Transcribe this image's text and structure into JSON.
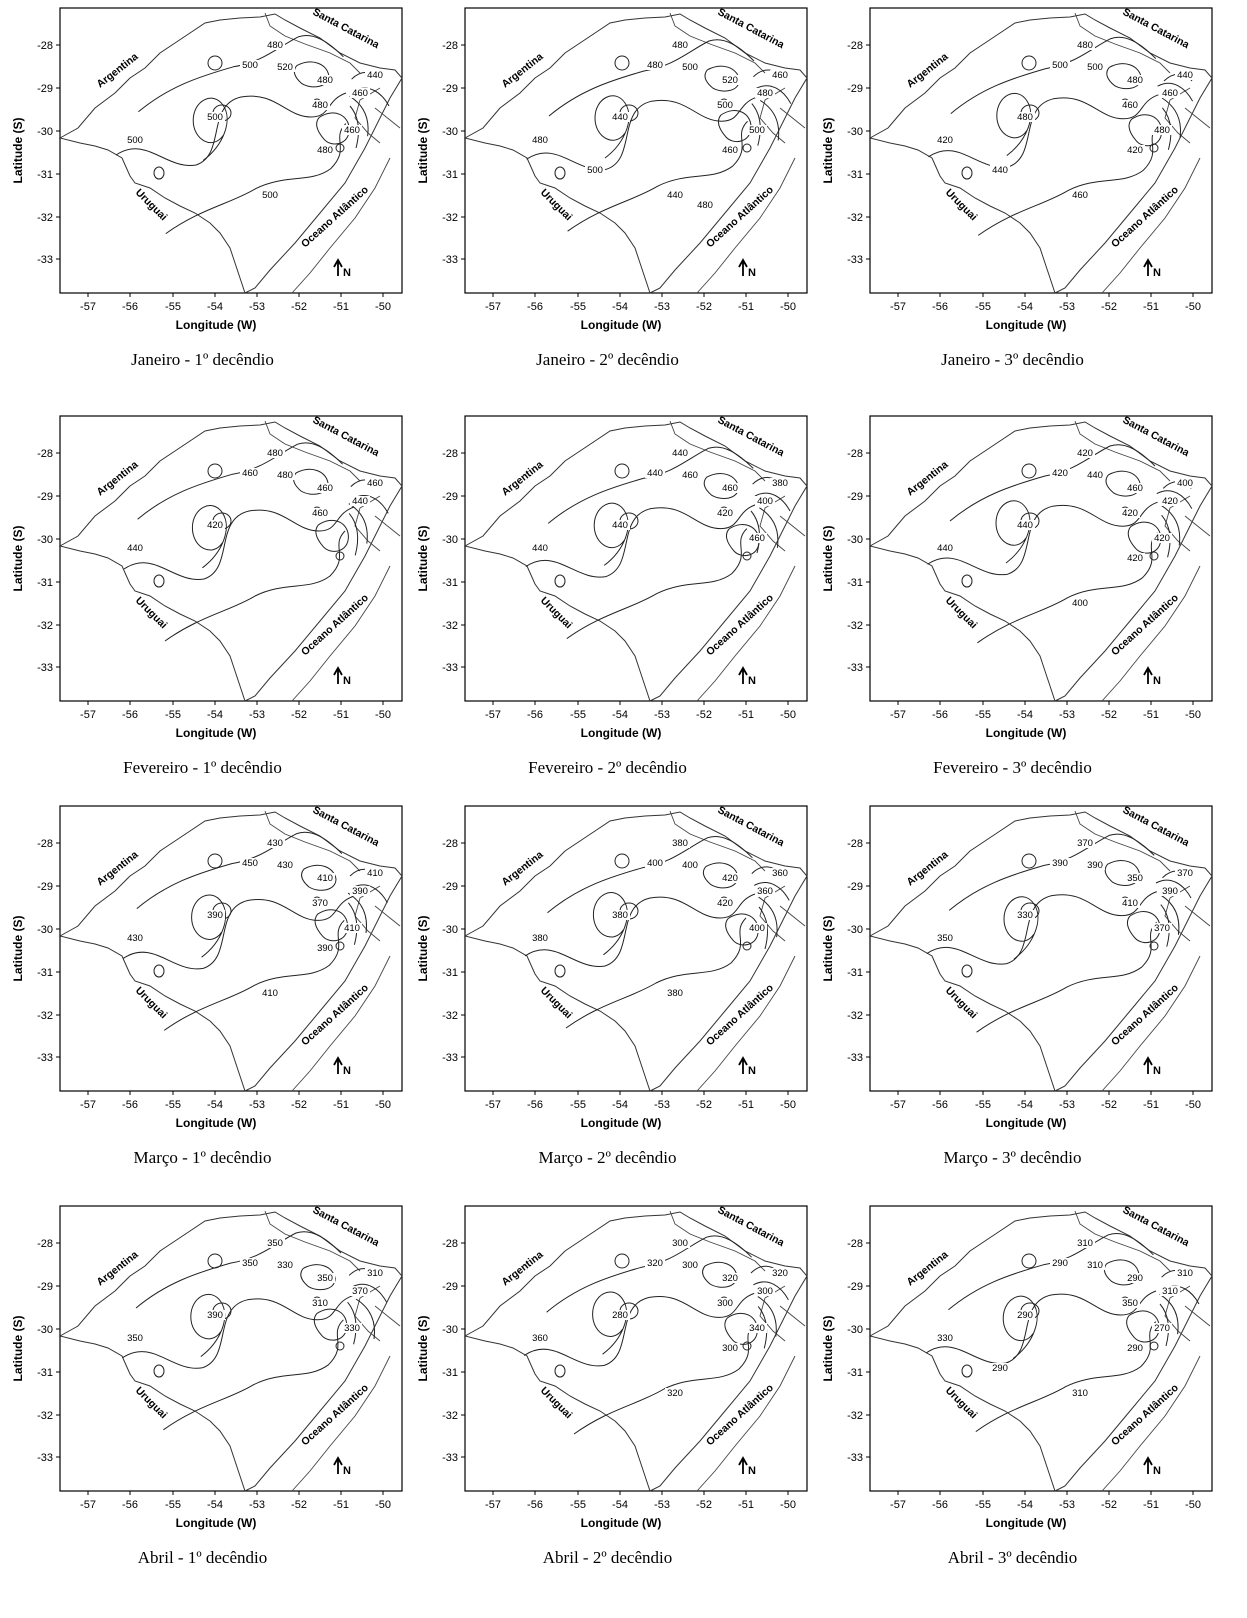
{
  "common": {
    "xlabel": "Longitude (W)",
    "ylabel": "Latitude (S)",
    "x_ticks": [
      "-57",
      "-56",
      "-55",
      "-54",
      "-53",
      "-52",
      "-51",
      "-50"
    ],
    "y_ticks": [
      "-28",
      "-29",
      "-30",
      "-31",
      "-32",
      "-33"
    ],
    "regions": {
      "argentina": "Argentina",
      "santa_catarina": "Santa Catarina",
      "uruguai": "Uruguai",
      "oceano": "Oceano Atlântico"
    },
    "north": "N"
  },
  "panels": [
    {
      "month": "Janeiro",
      "ord": "1",
      "suffix": "º decêndio",
      "contours": [
        "480",
        "500",
        "520",
        "480",
        "460",
        "440",
        "500",
        "480",
        "500",
        "460",
        "500",
        "480"
      ]
    },
    {
      "month": "Janeiro",
      "ord": "2",
      "suffix": "º decêndio",
      "contours": [
        "480",
        "480",
        "500",
        "520",
        "480",
        "460",
        "440",
        "500",
        "480",
        "500",
        "440",
        "460",
        "500",
        "480"
      ]
    },
    {
      "month": "Janeiro",
      "ord": "3",
      "suffix": "º decêndio",
      "contours": [
        "480",
        "500",
        "500",
        "480",
        "460",
        "440",
        "480",
        "460",
        "420",
        "480",
        "460",
        "420",
        "440"
      ]
    },
    {
      "month": "Fevereiro",
      "ord": "1",
      "suffix": "º decêndio",
      "contours": [
        "480",
        "460",
        "480",
        "460",
        "440",
        "460",
        "420",
        "460",
        "440"
      ]
    },
    {
      "month": "Fevereiro",
      "ord": "2",
      "suffix": "º decêndio",
      "contours": [
        "440",
        "440",
        "460",
        "460",
        "400",
        "380",
        "440",
        "420",
        "440",
        "460"
      ]
    },
    {
      "month": "Fevereiro",
      "ord": "3",
      "suffix": "º decêndio",
      "contours": [
        "420",
        "420",
        "440",
        "460",
        "420",
        "400",
        "440",
        "420",
        "440",
        "420",
        "400",
        "420"
      ]
    },
    {
      "month": "Março",
      "ord": "1",
      "suffix": "º decêndio",
      "contours": [
        "430",
        "450",
        "430",
        "410",
        "390",
        "410",
        "390",
        "370",
        "430",
        "410",
        "410",
        "390"
      ]
    },
    {
      "month": "Março",
      "ord": "2",
      "suffix": "º decêndio",
      "contours": [
        "380",
        "400",
        "400",
        "420",
        "360",
        "360",
        "380",
        "420",
        "380",
        "400",
        "380"
      ]
    },
    {
      "month": "Março",
      "ord": "3",
      "suffix": "º decêndio",
      "contours": [
        "370",
        "390",
        "390",
        "350",
        "390",
        "370",
        "330",
        "410",
        "350",
        "370"
      ]
    },
    {
      "month": "Abril",
      "ord": "1",
      "suffix": "º decêndio",
      "contours": [
        "350",
        "350",
        "330",
        "350",
        "370",
        "310",
        "390",
        "310",
        "350",
        "330"
      ]
    },
    {
      "month": "Abril",
      "ord": "2",
      "suffix": "º decêndio",
      "contours": [
        "300",
        "320",
        "300",
        "320",
        "300",
        "320",
        "280",
        "300",
        "360",
        "340",
        "320",
        "300"
      ]
    },
    {
      "month": "Abril",
      "ord": "3",
      "suffix": "º decêndio",
      "contours": [
        "310",
        "290",
        "310",
        "290",
        "310",
        "310",
        "290",
        "350",
        "330",
        "270",
        "310",
        "290",
        "290"
      ]
    }
  ]
}
